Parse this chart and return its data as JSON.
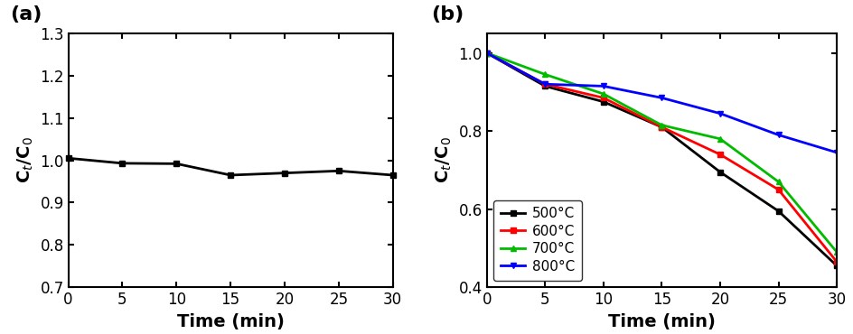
{
  "panel_a": {
    "x": [
      0,
      5,
      10,
      15,
      20,
      25,
      30
    ],
    "y": [
      1.005,
      0.993,
      0.992,
      0.965,
      0.97,
      0.975,
      0.965
    ],
    "color": "#000000",
    "marker": "s",
    "markersize": 5,
    "linewidth": 2.0,
    "ylim": [
      0.7,
      1.3
    ],
    "yticks": [
      0.7,
      0.8,
      0.9,
      1.0,
      1.1,
      1.2,
      1.3
    ],
    "xlim": [
      0,
      30
    ],
    "xticks": [
      0,
      5,
      10,
      15,
      20,
      25,
      30
    ],
    "xlabel": "Time (min)",
    "ylabel": "C$_t$/C$_0$",
    "label": "(a)"
  },
  "panel_b": {
    "x": [
      0,
      5,
      10,
      15,
      20,
      25,
      30
    ],
    "series": {
      "500": {
        "y": [
          1.0,
          0.915,
          0.875,
          0.81,
          0.695,
          0.595,
          0.455
        ],
        "color": "#000000",
        "marker": "s",
        "label": "500°C"
      },
      "600": {
        "y": [
          1.0,
          0.92,
          0.885,
          0.81,
          0.74,
          0.65,
          0.465
        ],
        "color": "#ff0000",
        "marker": "s",
        "label": "600°C"
      },
      "700": {
        "y": [
          1.0,
          0.945,
          0.895,
          0.815,
          0.78,
          0.67,
          0.49
        ],
        "color": "#00bb00",
        "marker": "^",
        "label": "700°C"
      },
      "800": {
        "y": [
          1.0,
          0.92,
          0.915,
          0.885,
          0.845,
          0.79,
          0.745
        ],
        "color": "#0000ff",
        "marker": "v",
        "label": "800°C"
      }
    },
    "linewidth": 2.0,
    "markersize": 5,
    "ylim": [
      0.4,
      1.05
    ],
    "yticks": [
      0.4,
      0.6,
      0.8,
      1.0
    ],
    "xlim": [
      0,
      30
    ],
    "xticks": [
      0,
      5,
      10,
      15,
      20,
      25,
      30
    ],
    "xlabel": "Time (min)",
    "ylabel": "C$_t$/C$_0$",
    "label": "(b)"
  },
  "background_color": "#ffffff",
  "tick_fontsize": 12,
  "label_fontsize": 14,
  "panel_label_fontsize": 16
}
